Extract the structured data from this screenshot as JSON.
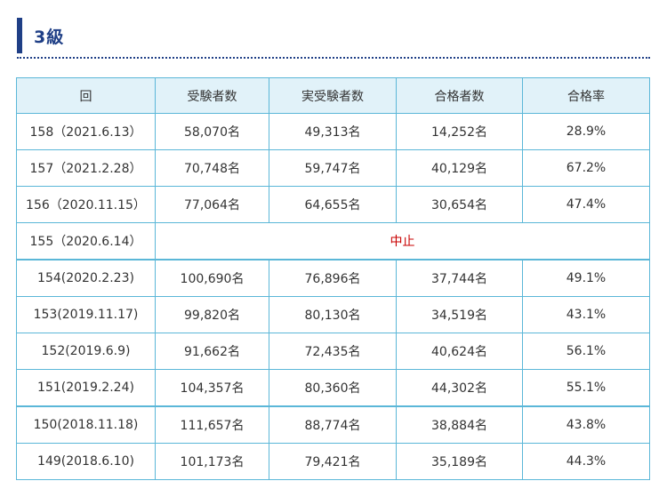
{
  "section": {
    "title": "3級"
  },
  "table": {
    "headers": [
      "回",
      "受験者数",
      "実受験者数",
      "合格者数",
      "合格率"
    ],
    "rows": [
      {
        "session": "158（2021.6.13）",
        "applicants": "58,070名",
        "examinees": "49,313名",
        "passed": "14,252名",
        "rate": "28.9%"
      },
      {
        "session": "157（2021.2.28）",
        "applicants": "70,748名",
        "examinees": "59,747名",
        "passed": "40,129名",
        "rate": "67.2%"
      },
      {
        "session": "156（2020.11.15）",
        "applicants": "77,064名",
        "examinees": "64,655名",
        "passed": "30,654名",
        "rate": "47.4%"
      },
      {
        "session": "155（2020.6.14）",
        "cancelled": "中止"
      },
      {
        "session": "154(2020.2.23)",
        "applicants": "100,690名",
        "examinees": "76,896名",
        "passed": "37,744名",
        "rate": "49.1%"
      },
      {
        "session": "153(2019.11.17)",
        "applicants": "99,820名",
        "examinees": "80,130名",
        "passed": "34,519名",
        "rate": "43.1%"
      },
      {
        "session": "152(2019.6.9)",
        "applicants": "91,662名",
        "examinees": "72,435名",
        "passed": "40,624名",
        "rate": "56.1%"
      },
      {
        "session": "151(2019.2.24)",
        "applicants": "104,357名",
        "examinees": "80,360名",
        "passed": "44,302名",
        "rate": "55.1%"
      },
      {
        "session": "150(2018.11.18)",
        "applicants": "111,657名",
        "examinees": "88,774名",
        "passed": "38,884名",
        "rate": "43.8%"
      },
      {
        "session": "149(2018.6.10)",
        "applicants": "101,173名",
        "examinees": "79,421名",
        "passed": "35,189名",
        "rate": "44.3%"
      }
    ]
  }
}
